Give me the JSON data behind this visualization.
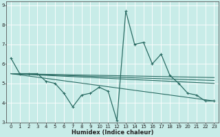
{
  "xlabel": "Humidex (Indice chaleur)",
  "bg_color": "#c8ece8",
  "line_color": "#2a6b63",
  "grid_color": "#ffffff",
  "xlim": [
    -0.5,
    23.5
  ],
  "ylim": [
    3,
    9.2
  ],
  "yticks": [
    3,
    4,
    5,
    6,
    7,
    8,
    9
  ],
  "xticks": [
    0,
    1,
    2,
    3,
    4,
    5,
    6,
    7,
    8,
    9,
    10,
    11,
    12,
    13,
    14,
    15,
    16,
    17,
    18,
    19,
    20,
    21,
    22,
    23
  ],
  "line1_x": [
    0,
    1,
    2,
    3,
    4,
    5,
    6,
    7,
    8,
    9,
    10,
    11,
    12,
    13,
    14,
    15,
    16,
    17,
    18,
    19,
    20,
    21,
    22,
    23
  ],
  "line1_y": [
    6.3,
    5.5,
    5.5,
    5.5,
    5.1,
    5.0,
    4.5,
    3.8,
    4.4,
    4.5,
    4.8,
    4.6,
    3.1,
    8.7,
    7.0,
    7.1,
    6.0,
    6.5,
    5.4,
    5.0,
    4.5,
    4.4,
    4.1,
    4.1
  ],
  "line2_x": [
    0,
    23
  ],
  "line2_y": [
    5.5,
    5.3
  ],
  "line3_x": [
    0,
    23
  ],
  "line3_y": [
    5.5,
    5.15
  ],
  "line4_x": [
    0,
    23
  ],
  "line4_y": [
    5.5,
    5.0
  ],
  "line5_x": [
    0,
    23
  ],
  "line5_y": [
    5.5,
    4.1
  ],
  "xlabel_fontsize": 6,
  "tick_fontsize": 5
}
